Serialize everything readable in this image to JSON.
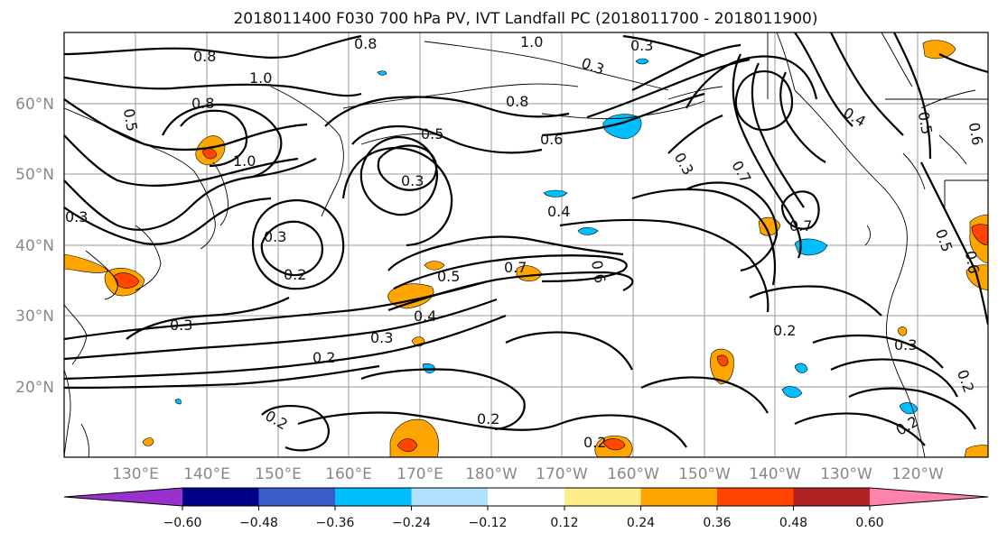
{
  "title": "2018011400 F030 700 hPa PV, IVT Landfall PC (2018011700 - 2018011900)",
  "lat_labels": [
    "60°N",
    "50°N",
    "40°N",
    "30°N",
    "20°N"
  ],
  "lon_labels": [
    "130°E",
    "140°E",
    "150°E",
    "160°E",
    "170°E",
    "180°W",
    "170°W",
    "160°W",
    "150°W",
    "140°W",
    "130°W",
    "120°W"
  ],
  "colorbar": {
    "ticks": [
      "−0.60",
      "−0.48",
      "−0.36",
      "−0.24",
      "−0.12",
      "0.12",
      "0.24",
      "0.36",
      "0.48",
      "0.60"
    ],
    "colors": [
      "#9932cc",
      "#00008b",
      "#3a5fcd",
      "#00bfff",
      "#b0e2ff",
      "#ffffff",
      "#ffec8b",
      "#ffa500",
      "#ff4500",
      "#b22222",
      "#ff82ab"
    ]
  },
  "contour_labels": [
    {
      "id": "cl-0-8-a",
      "text": "0.8"
    },
    {
      "id": "cl-1-0-a",
      "text": "1.0"
    },
    {
      "id": "cl-0-8-b",
      "text": "0.8"
    },
    {
      "id": "cl-0-5-a",
      "text": "0.5"
    },
    {
      "id": "cl-1-0-b",
      "text": "1.0"
    },
    {
      "id": "cl-0-3-a",
      "text": "0.3"
    },
    {
      "id": "cl-0-3-b",
      "text": "0.3"
    },
    {
      "id": "cl-0-2-a",
      "text": "0.2"
    },
    {
      "id": "cl-0-3-c",
      "text": "0.3"
    },
    {
      "id": "cl-0-5-b",
      "text": "0.5"
    },
    {
      "id": "cl-0-3-d",
      "text": "0.3"
    },
    {
      "id": "cl-0-6-a",
      "text": "0.6"
    },
    {
      "id": "cl-0-8-c",
      "text": "0.8"
    },
    {
      "id": "cl-0-4-a",
      "text": "0.4"
    },
    {
      "id": "cl-0-5-c",
      "text": "0.5"
    },
    {
      "id": "cl-0-7-a",
      "text": "0.7"
    },
    {
      "id": "cl-0-6-b",
      "text": "0.6"
    },
    {
      "id": "cl-0-4-b",
      "text": "0.4"
    },
    {
      "id": "cl-0-3-e",
      "text": "0.3"
    },
    {
      "id": "cl-0-2-b",
      "text": "0.2"
    },
    {
      "id": "cl-0-2-c",
      "text": "0.2"
    },
    {
      "id": "cl-0-2-d",
      "text": "0.2"
    },
    {
      "id": "cl-0-2-e",
      "text": "0.2"
    },
    {
      "id": "cl-0-3-f",
      "text": "0.3"
    },
    {
      "id": "cl-0-3-g",
      "text": "0.3"
    },
    {
      "id": "cl-0-7-b",
      "text": "0.7"
    },
    {
      "id": "cl-0-3-h",
      "text": "0.3"
    },
    {
      "id": "cl-0-4-c",
      "text": "0.4"
    },
    {
      "id": "cl-0-5-d",
      "text": "0.5"
    },
    {
      "id": "cl-0-2-f",
      "text": "0.2"
    },
    {
      "id": "cl-0-3-i",
      "text": "0.3"
    },
    {
      "id": "cl-0-2-g",
      "text": "0.2"
    },
    {
      "id": "cl-0-2-h",
      "text": "0.2"
    },
    {
      "id": "cl-0-5-e",
      "text": "0.5"
    },
    {
      "id": "cl-0-6-c",
      "text": "0.6"
    },
    {
      "id": "cl-0-6-d",
      "text": "0.6"
    },
    {
      "id": "cl-0-7-c",
      "text": "0.7"
    },
    {
      "id": "cl-0-8-d",
      "text": "0.8"
    },
    {
      "id": "cl-1-0-c",
      "text": "1.0"
    }
  ]
}
